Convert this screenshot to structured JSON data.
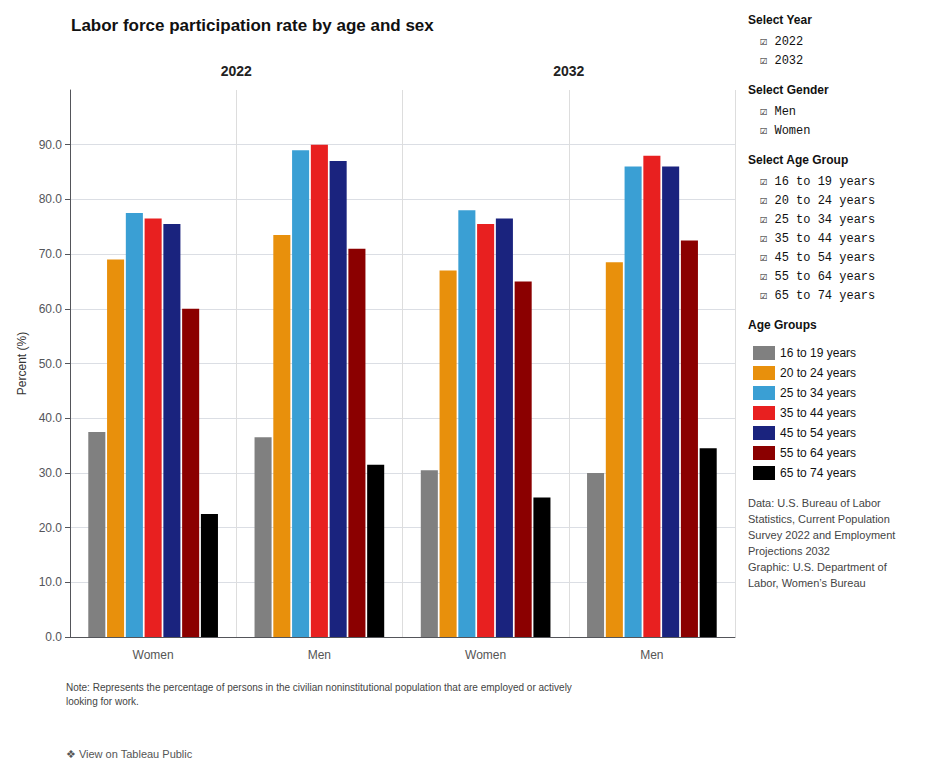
{
  "chart_data": {
    "type": "bar",
    "title": "Labor force participation rate by age and sex",
    "ylabel": "Percent (%)",
    "categories": [
      "Women",
      "Men",
      "Women",
      "Men"
    ],
    "group_labels": [
      "2022",
      "2032"
    ],
    "series": [
      {
        "name": "16 to 19 years",
        "color": "#808080",
        "values": [
          37.5,
          36.5,
          30.5,
          30.0
        ]
      },
      {
        "name": "20 to 24 years",
        "color": "#E8900C",
        "values": [
          69.0,
          73.5,
          67.0,
          68.5
        ]
      },
      {
        "name": "25 to 34 years",
        "color": "#3A9FD4",
        "values": [
          77.5,
          89.0,
          78.0,
          86.0
        ]
      },
      {
        "name": "35 to 44 years",
        "color": "#E82020",
        "values": [
          76.5,
          90.0,
          75.5,
          88.0
        ]
      },
      {
        "name": "45 to 54 years",
        "color": "#1A237E",
        "values": [
          75.5,
          87.0,
          76.5,
          86.0
        ]
      },
      {
        "name": "55 to 64 years",
        "color": "#8B0000",
        "values": [
          60.0,
          71.0,
          65.0,
          72.5
        ]
      },
      {
        "name": "65 to 74 years",
        "color": "#000000",
        "values": [
          22.5,
          31.5,
          25.5,
          34.5
        ]
      }
    ],
    "ylim": [
      0,
      100
    ],
    "yticks": [
      {
        "value": 0,
        "label": "0.0"
      },
      {
        "value": 10,
        "label": "10.0"
      },
      {
        "value": 20,
        "label": "20.0"
      },
      {
        "value": 30,
        "label": "30.0"
      },
      {
        "value": 40,
        "label": "40.0"
      },
      {
        "value": 50,
        "label": "50.0"
      },
      {
        "value": 60,
        "label": "60.0"
      },
      {
        "value": 70,
        "label": "70.0"
      },
      {
        "value": 80,
        "label": "80.0"
      },
      {
        "value": 90,
        "label": "90.0"
      }
    ],
    "grid": true,
    "legend": "right",
    "legend_title": "Age Groups",
    "note": "Note: Represents the percentage of persons in the civilian noninstitutional population that are employed or actively\nlooking for work.",
    "footer": "❖ View on Tableau Public",
    "sidebar": [
      {
        "header": "Select Year",
        "items": [
          "☑ 2022",
          "☑ 2032"
        ]
      },
      {
        "header": "Select Gender",
        "items": [
          "☑ Men",
          "☑ Women"
        ]
      },
      {
        "header": "Select Age Group",
        "items": [
          "☑ 16 to 19 years",
          "☑ 20 to 24 years",
          "☑ 25 to 34 years",
          "☑ 35 to 44 years",
          "☑ 45 to 54 years",
          "☑ 55 to 64 years",
          "☑ 65 to 74 years"
        ]
      }
    ],
    "data_credit": "Data: U.S. Bureau of Labor\nStatistics, Current Population\nSurvey 2022 and Employment\nProjections 2032\nGraphic: U.S. Department of\nLabor, Women’s Bureau"
  }
}
